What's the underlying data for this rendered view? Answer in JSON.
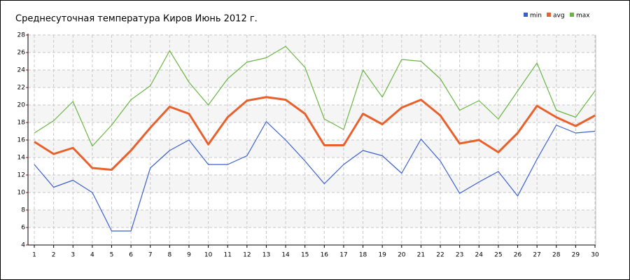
{
  "chart_data": {
    "type": "line",
    "title": "Среднесуточная температура Киров  Июнь 2012 г.",
    "x": [
      1,
      2,
      3,
      4,
      5,
      6,
      7,
      8,
      9,
      10,
      11,
      12,
      13,
      14,
      15,
      16,
      17,
      18,
      19,
      20,
      21,
      22,
      23,
      24,
      25,
      26,
      27,
      28,
      29,
      30
    ],
    "xlim": [
      1,
      30
    ],
    "xticks": [
      1,
      2,
      3,
      4,
      5,
      6,
      7,
      8,
      9,
      10,
      11,
      12,
      13,
      14,
      15,
      16,
      17,
      18,
      19,
      20,
      21,
      22,
      23,
      24,
      25,
      26,
      27,
      28,
      29,
      30
    ],
    "ylim": [
      4,
      28
    ],
    "yticks": [
      4,
      6,
      8,
      10,
      12,
      14,
      16,
      18,
      20,
      22,
      24,
      26,
      28
    ],
    "grid": true,
    "legend": "top-right",
    "series": [
      {
        "name": "min",
        "color": "#3a5fcd",
        "values": [
          13.2,
          10.6,
          11.4,
          10.0,
          5.6,
          5.6,
          12.8,
          14.8,
          16.0,
          13.2,
          13.2,
          14.2,
          18.1,
          16.0,
          13.6,
          11.0,
          13.2,
          14.8,
          14.2,
          12.2,
          16.1,
          13.6,
          9.9,
          11.2,
          12.4,
          9.6,
          13.8,
          17.7,
          16.8,
          17.0
        ]
      },
      {
        "name": "avg",
        "color": "#e8602c",
        "values": [
          15.8,
          14.4,
          15.1,
          12.8,
          12.6,
          14.8,
          17.4,
          19.8,
          19.0,
          15.5,
          18.6,
          20.5,
          20.9,
          20.6,
          19.0,
          15.4,
          15.4,
          19.0,
          17.8,
          19.7,
          20.6,
          18.8,
          15.6,
          16.0,
          14.6,
          16.8,
          19.9,
          18.6,
          17.6,
          18.8
        ]
      },
      {
        "name": "max",
        "color": "#6ab544",
        "values": [
          16.8,
          18.2,
          20.4,
          15.3,
          17.7,
          20.6,
          22.2,
          26.2,
          22.6,
          20.0,
          23.0,
          24.9,
          25.4,
          26.7,
          24.3,
          18.4,
          17.2,
          24.0,
          20.9,
          25.2,
          25.0,
          23.0,
          19.4,
          20.5,
          18.4,
          21.6,
          24.8,
          19.4,
          18.6,
          21.6
        ]
      }
    ]
  }
}
